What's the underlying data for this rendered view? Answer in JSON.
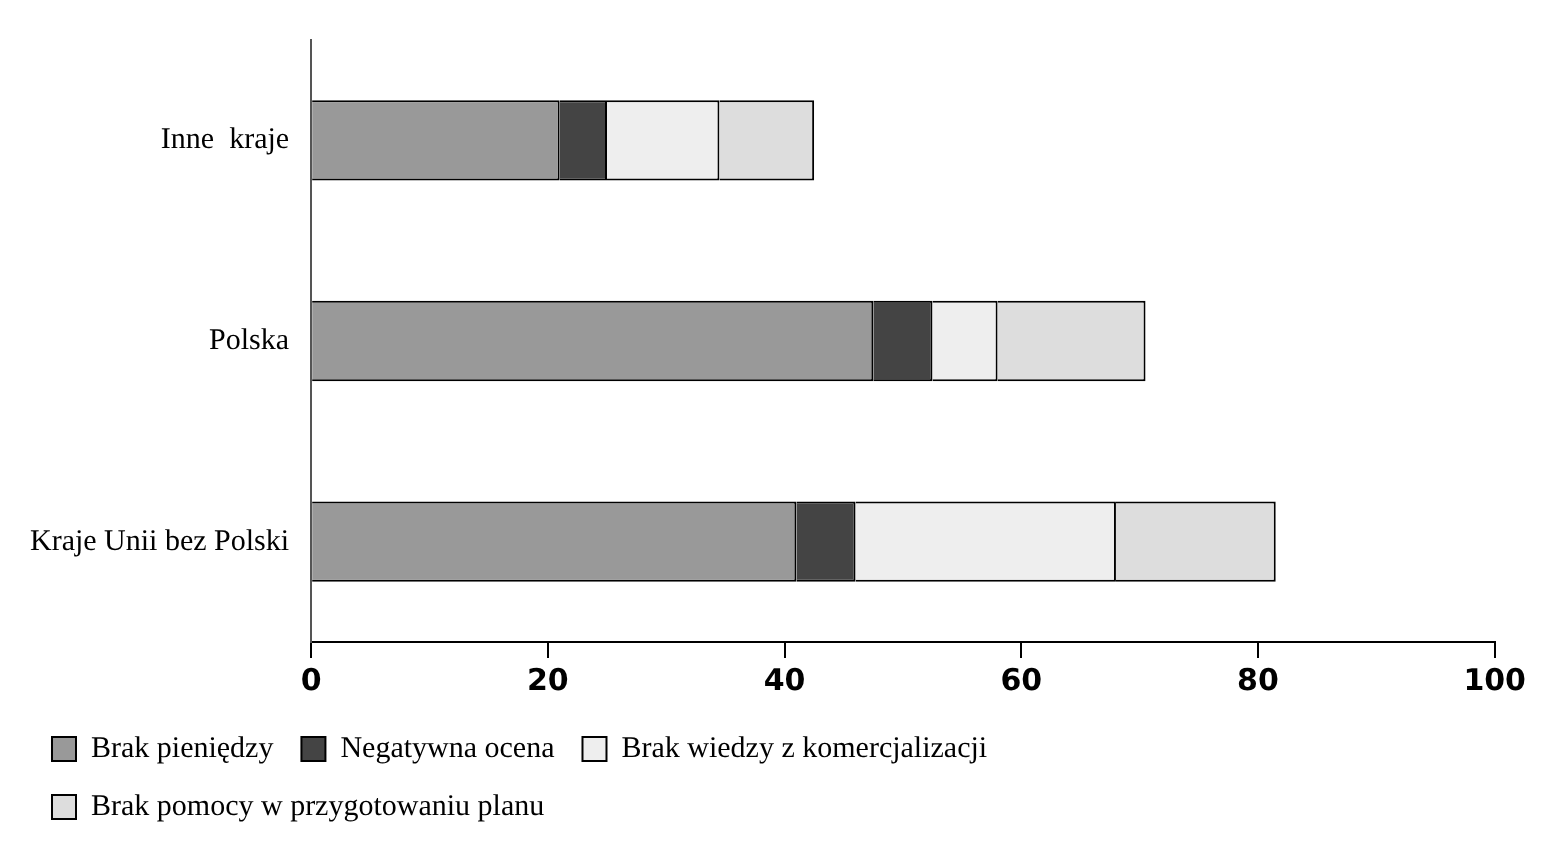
{
  "chart_data": {
    "type": "bar",
    "orientation": "horizontal",
    "stacked": true,
    "categories": [
      "Inne  kraje",
      "Polska",
      "Kraje Unii bez Polski"
    ],
    "series": [
      {
        "name": "Brak pieniędzy",
        "color": "#999999",
        "values": [
          21,
          47.5,
          41
        ]
      },
      {
        "name": "Negatywna ocena",
        "color": "#444444",
        "values": [
          4,
          5,
          5
        ]
      },
      {
        "name": "Brak wiedzy z komercjalizacji",
        "color": "#eeeeee",
        "values": [
          9.5,
          5.5,
          22
        ]
      },
      {
        "name": "Brak pomocy w przygotowaniu planu",
        "color": "#dddddd",
        "values": [
          8,
          12.5,
          13.5
        ]
      }
    ],
    "xlim": [
      0,
      100
    ],
    "xticks": [
      0,
      20,
      40,
      60,
      80,
      100
    ],
    "grid": false,
    "legend": "bottom"
  }
}
